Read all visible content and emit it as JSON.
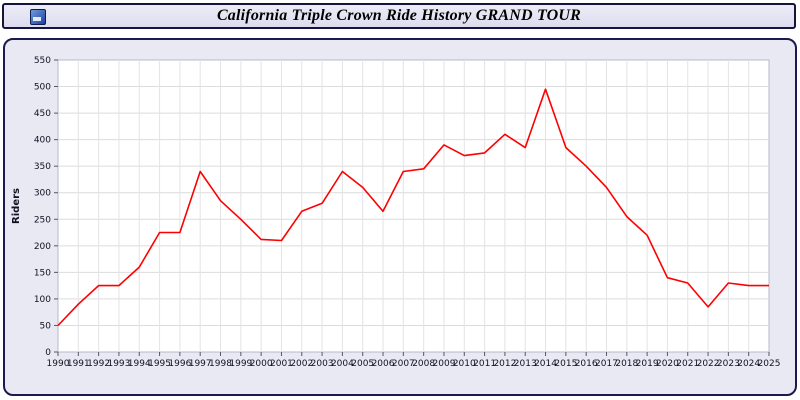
{
  "header": {
    "title": "California Triple Crown Ride History GRAND TOUR"
  },
  "colors": {
    "line": "#ff0000",
    "panel_bg": "#e9e9f4",
    "titlebar_bg": "#e3e3f2",
    "border": "#1a1a4e",
    "grid": "#dcdcdc",
    "plot_bg": "#ffffff"
  },
  "chart_data": {
    "type": "line",
    "title": "California Triple Crown Ride History GRAND TOUR",
    "xlabel": "",
    "ylabel": "Riders",
    "ylim": [
      0,
      550
    ],
    "ytick_step": 50,
    "grid": true,
    "legend": "none",
    "line_color": "#ff0000",
    "categories": [
      "1990",
      "1991",
      "1992",
      "1993",
      "1994",
      "1995",
      "1996",
      "1997",
      "1998",
      "1999",
      "2000",
      "2001",
      "2002",
      "2003",
      "2004",
      "2005",
      "2006",
      "2007",
      "2008",
      "2009",
      "2010",
      "2011",
      "2012",
      "2013",
      "2014",
      "2015",
      "2016",
      "2017",
      "2018",
      "2019",
      "2020",
      "2021",
      "2022",
      "2023",
      "2024",
      "2025"
    ],
    "values": [
      50,
      90,
      125,
      125,
      160,
      225,
      225,
      340,
      285,
      250,
      212,
      210,
      265,
      280,
      340,
      310,
      265,
      340,
      345,
      390,
      370,
      375,
      410,
      385,
      495,
      385,
      350,
      310,
      255,
      220,
      140,
      130,
      85,
      130,
      125,
      125
    ]
  }
}
